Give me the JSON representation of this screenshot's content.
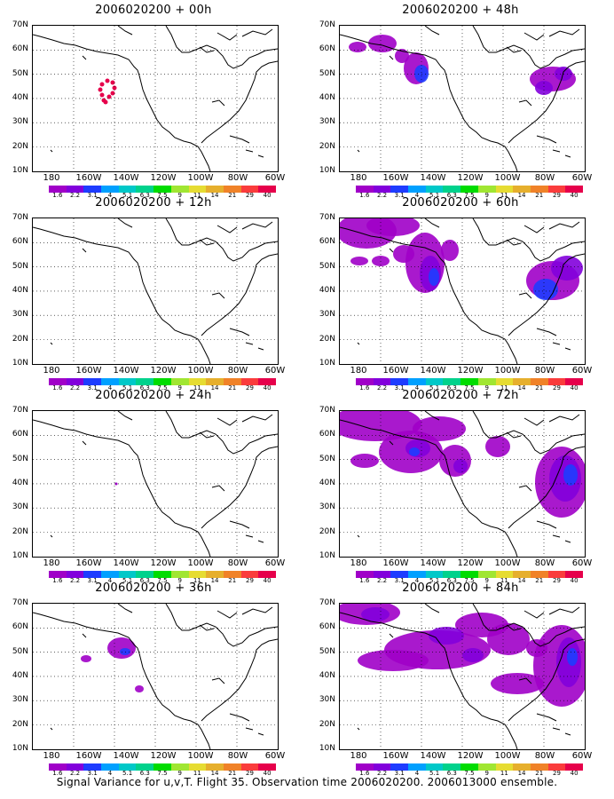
{
  "panels": [
    {
      "title": "2006020200 + 00h"
    },
    {
      "title": "2006020200 + 48h"
    },
    {
      "title": "2006020200 + 12h"
    },
    {
      "title": "2006020200 + 60h"
    },
    {
      "title": "2006020200 + 24h"
    },
    {
      "title": "2006020200 + 72h"
    },
    {
      "title": "2006020200 + 36h"
    },
    {
      "title": "2006020200 + 84h"
    }
  ],
  "lat_labels": [
    "70N",
    "60N",
    "50N",
    "40N",
    "30N",
    "20N",
    "10N"
  ],
  "lon_labels": [
    "180",
    "160W",
    "140W",
    "120W",
    "100W",
    "80W",
    "60W"
  ],
  "colorbar": {
    "colors": [
      "#a000c8",
      "#8200dc",
      "#1e3cff",
      "#00a0ff",
      "#00c8c8",
      "#00d28c",
      "#00dc00",
      "#a0e632",
      "#e6dc32",
      "#e6af2d",
      "#f08228",
      "#fa3c3c",
      "#e6004b"
    ],
    "labels": [
      "1.6",
      "2.2",
      "3.1",
      "4",
      "5.1",
      "6.3",
      "7.5",
      "9",
      "11",
      "14",
      "21",
      "29",
      "40"
    ]
  },
  "footer": "Signal Variance for u,v,T. Flight 35. Observation time 2006020200. 2006013000 ensemble."
}
